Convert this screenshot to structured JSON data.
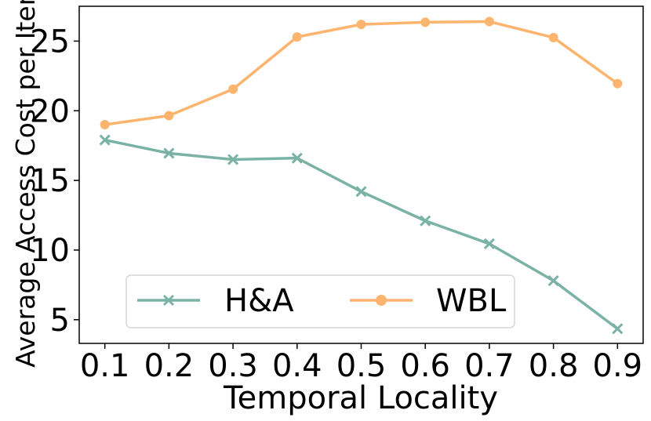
{
  "chart_data": {
    "type": "line",
    "title": "",
    "xlabel": "Temporal Locality",
    "ylabel": "Average Access Cost per Item",
    "x": [
      0.1,
      0.2,
      0.3,
      0.4,
      0.5,
      0.6,
      0.7,
      0.8,
      0.9
    ],
    "x_tick_labels": [
      "0.1",
      "0.2",
      "0.3",
      "0.4",
      "0.5",
      "0.6",
      "0.7",
      "0.8",
      "0.9"
    ],
    "y_ticks": [
      5,
      10,
      15,
      20,
      25
    ],
    "y_tick_labels": [
      "5",
      "10",
      "15",
      "20",
      "25"
    ],
    "xlim": [
      0.06,
      0.94
    ],
    "ylim": [
      3.3,
      27.5
    ],
    "grid": false,
    "legend_position": "lower-center",
    "series": [
      {
        "name": "H&A",
        "color": "#7ab3a6",
        "marker": "x",
        "values": [
          17.9,
          16.95,
          16.5,
          16.6,
          14.2,
          12.1,
          10.45,
          7.8,
          4.35
        ]
      },
      {
        "name": "WBL",
        "color": "#fdb46e",
        "marker": "circle",
        "values": [
          19.0,
          19.65,
          21.55,
          25.3,
          26.2,
          26.35,
          26.4,
          25.25,
          21.95
        ]
      }
    ]
  }
}
